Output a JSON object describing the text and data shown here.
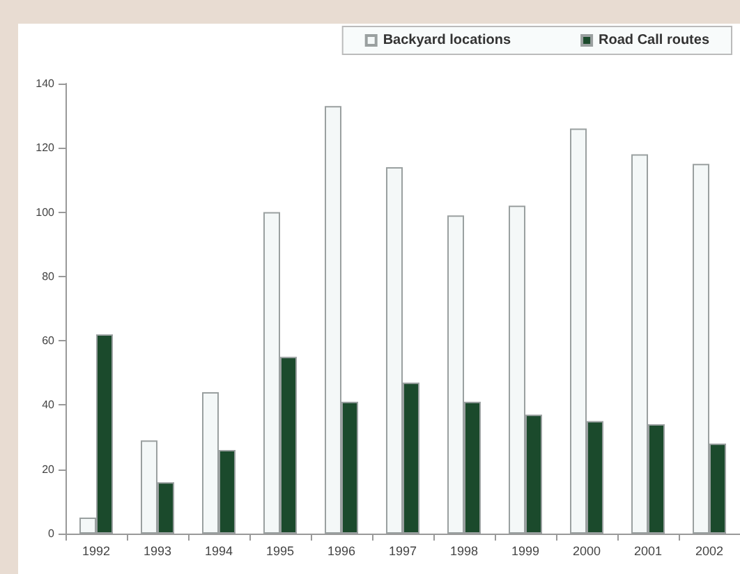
{
  "chart_data": {
    "type": "bar",
    "categories": [
      "1992",
      "1993",
      "1994",
      "1995",
      "1996",
      "1997",
      "1998",
      "1999",
      "2000",
      "2001",
      "2002"
    ],
    "series": [
      {
        "name": "Backyard locations",
        "color": "#f4f8f8",
        "values": [
          5,
          29,
          44,
          100,
          133,
          114,
          99,
          102,
          126,
          118,
          115
        ]
      },
      {
        "name": "Road Call routes",
        "color": "#1b4a2c",
        "values": [
          62,
          16,
          26,
          55,
          41,
          47,
          41,
          37,
          35,
          34,
          28
        ]
      }
    ],
    "ylim": [
      0,
      140
    ],
    "yticks": [
      0,
      20,
      40,
      60,
      80,
      100,
      120,
      140
    ],
    "grid": false,
    "legend": "top right"
  }
}
